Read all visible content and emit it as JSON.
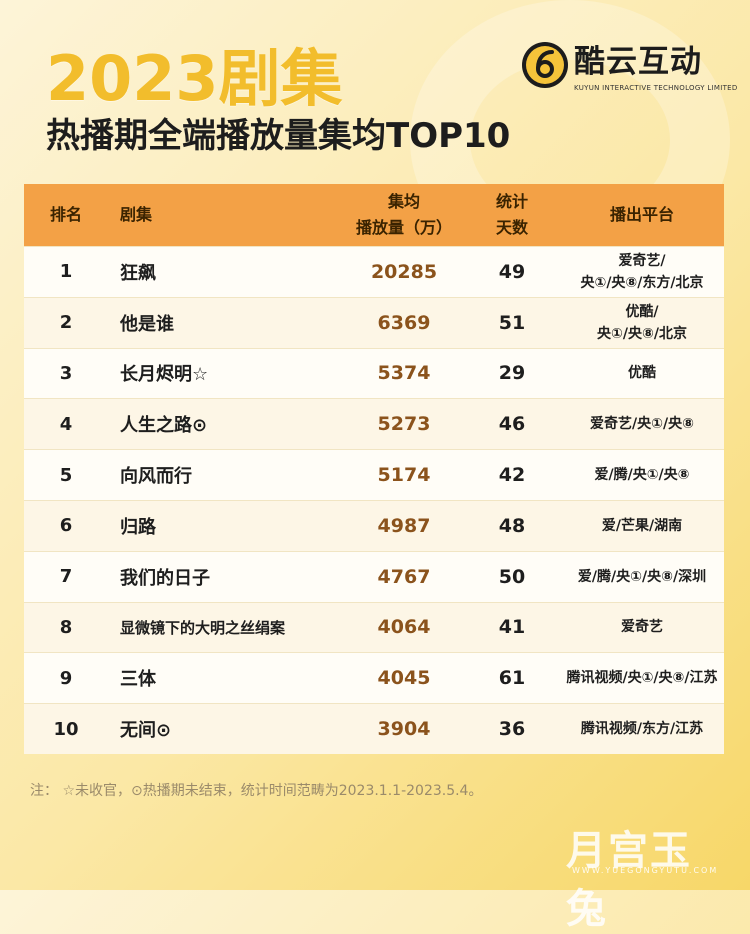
{
  "header": {
    "year_title": "2023剧集",
    "sub_title": "热播期全端播放量集均TOP10"
  },
  "logo": {
    "name": "酷云互动",
    "sub": "KUYUN INTERACTIVE TECHNOLOGY LIMITED"
  },
  "table": {
    "headers": {
      "rank": "排名",
      "name": "剧集",
      "plays_l1": "集均",
      "plays_l2": "播放量（万）",
      "days_l1": "统计",
      "days_l2": "天数",
      "platform": "播出平台"
    },
    "rows": [
      {
        "rank": "1",
        "name": "狂飙",
        "plays": "20285",
        "days": "49",
        "plat1": "爱奇艺/",
        "plat2": "央①/央⑧/东方/北京"
      },
      {
        "rank": "2",
        "name": "他是谁",
        "plays": "6369",
        "days": "51",
        "plat1": "优酷/",
        "plat2": "央①/央⑧/北京"
      },
      {
        "rank": "3",
        "name": "长月烬明☆",
        "plays": "5374",
        "days": "29",
        "plat1": "优酷",
        "plat2": ""
      },
      {
        "rank": "4",
        "name": "人生之路⊙",
        "plays": "5273",
        "days": "46",
        "plat1": "爱奇艺/央①/央⑧",
        "plat2": ""
      },
      {
        "rank": "5",
        "name": "向风而行",
        "plays": "5174",
        "days": "42",
        "plat1": "爱/腾/央①/央⑧",
        "plat2": ""
      },
      {
        "rank": "6",
        "name": "归路",
        "plays": "4987",
        "days": "48",
        "plat1": "爱/芒果/湖南",
        "plat2": ""
      },
      {
        "rank": "7",
        "name": "我们的日子",
        "plays": "4767",
        "days": "50",
        "plat1": "爱/腾/央①/央⑧/深圳",
        "plat2": ""
      },
      {
        "rank": "8",
        "name": "显微镜下的大明之丝绢案",
        "plays": "4064",
        "days": "41",
        "plat1": "爱奇艺",
        "plat2": ""
      },
      {
        "rank": "9",
        "name": "三体",
        "plays": "4045",
        "days": "61",
        "plat1": "腾讯视频/央①/央⑧/江苏",
        "plat2": ""
      },
      {
        "rank": "10",
        "name": "无间⊙",
        "plays": "3904",
        "days": "36",
        "plat1": "腾讯视频/东方/江苏",
        "plat2": ""
      }
    ]
  },
  "note": "注：  ☆未收官，⊙热播期未结束，统计时间范畴为2023.1.1-2023.5.4。",
  "watermark": {
    "text": "月宫玉兔",
    "url": "WWW.YUEGONGYUTU.COM"
  },
  "colors": {
    "accent": "#f3a146",
    "title_gold": "#f2bd2c",
    "plays_brown": "#8b531c"
  }
}
